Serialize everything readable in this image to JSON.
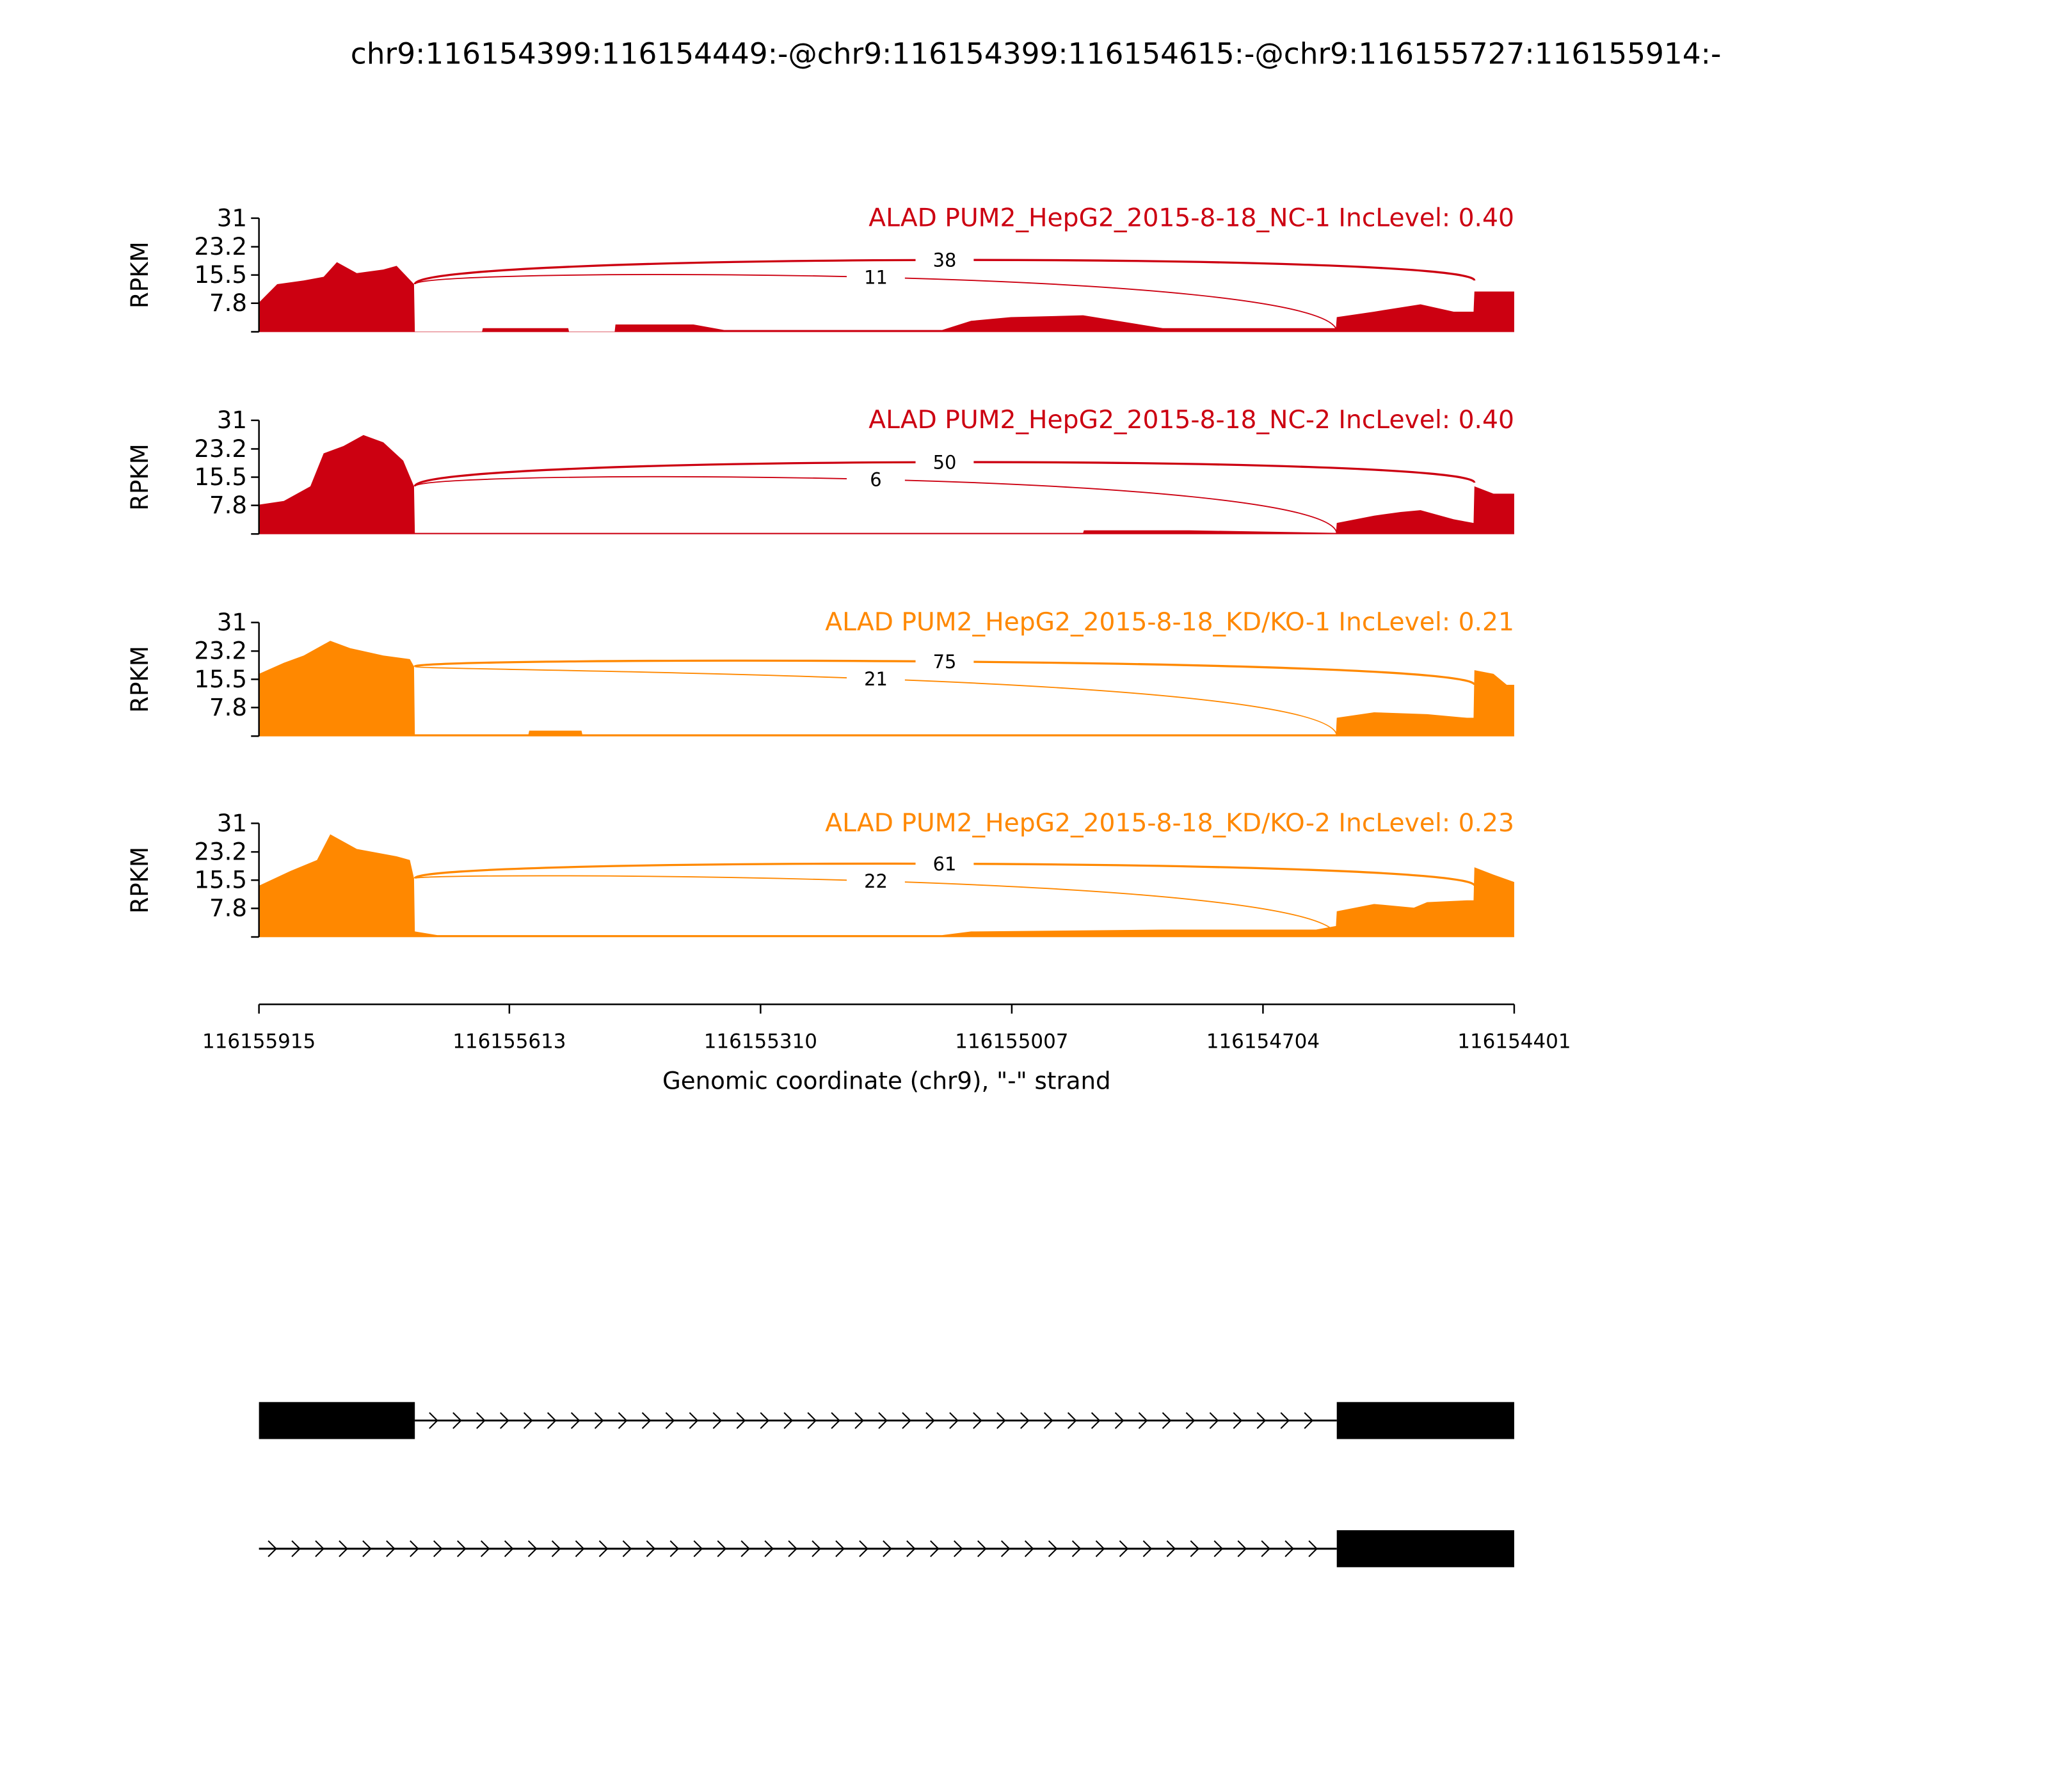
{
  "chart_data": {
    "type": "area",
    "title": "chr9:116154399:116154449:-@chr9:116154399:116154615:-@chr9:116155727:116155914:-",
    "xlabel": "Genomic coordinate (chr9), \"-\" strand",
    "ylabel": "RPKM",
    "xlim": [
      116155915,
      116154401
    ],
    "x_reversed": true,
    "xticks": [
      "116155915",
      "116155613",
      "116155310",
      "116155007",
      "116154704",
      "116154401"
    ],
    "ylim": [
      0,
      31
    ],
    "yticks": [
      "31",
      "23.2",
      "15.5",
      "7.8"
    ],
    "grid": false,
    "samples": [
      {
        "label": "ALAD PUM2_HepG2_2015-8-18_NC-1 IncLevel: 0.40",
        "color": "#cc0011",
        "coverage": [
          [
            116155915,
            8
          ],
          [
            116155893,
            13
          ],
          [
            116155861,
            14
          ],
          [
            116155837,
            15
          ],
          [
            116155821,
            19
          ],
          [
            116155797,
            16
          ],
          [
            116155765,
            17
          ],
          [
            116155749,
            18
          ],
          [
            116155728,
            13
          ],
          [
            116155727,
            0
          ],
          [
            116155646,
            0
          ],
          [
            116155645,
            1
          ],
          [
            116155542,
            1
          ],
          [
            116155541,
            0
          ],
          [
            116155486,
            0
          ],
          [
            116155485,
            2
          ],
          [
            116155391,
            2
          ],
          [
            116155354,
            0.5
          ],
          [
            116155091,
            0.5
          ],
          [
            116155056,
            3
          ],
          [
            116155008,
            4
          ],
          [
            116154921,
            4.5
          ],
          [
            116154825,
            1
          ],
          [
            116154616,
            1
          ],
          [
            116154615,
            4
          ],
          [
            116154570,
            5.5
          ],
          [
            116154514,
            7.5
          ],
          [
            116154474,
            5.5
          ],
          [
            116154450,
            5.5
          ],
          [
            116154449,
            11
          ],
          [
            116154401,
            11
          ]
        ],
        "junctions": [
          {
            "from": 116155727,
            "to": 116154449,
            "count": "38"
          },
          {
            "from": 116155727,
            "to": 116154615,
            "count": "11"
          }
        ]
      },
      {
        "label": "ALAD PUM2_HepG2_2015-8-18_NC-2 IncLevel: 0.40",
        "color": "#cc0011",
        "coverage": [
          [
            116155915,
            8
          ],
          [
            116155885,
            9
          ],
          [
            116155853,
            13
          ],
          [
            116155837,
            22
          ],
          [
            116155813,
            24
          ],
          [
            116155789,
            27
          ],
          [
            116155765,
            25
          ],
          [
            116155741,
            20
          ],
          [
            116155728,
            13
          ],
          [
            116155727,
            0.3
          ],
          [
            116154921,
            0.3
          ],
          [
            116154920,
            1
          ],
          [
            116154793,
            1
          ],
          [
            116154616,
            0.3
          ],
          [
            116154615,
            3
          ],
          [
            116154570,
            5
          ],
          [
            116154538,
            6
          ],
          [
            116154514,
            6.5
          ],
          [
            116154474,
            4
          ],
          [
            116154450,
            3
          ],
          [
            116154449,
            13
          ],
          [
            116154426,
            11
          ],
          [
            116154401,
            11
          ]
        ],
        "junctions": [
          {
            "from": 116155727,
            "to": 116154449,
            "count": "50"
          },
          {
            "from": 116155727,
            "to": 116154615,
            "count": "6"
          }
        ]
      },
      {
        "label": "ALAD PUM2_HepG2_2015-8-18_KD/KO-1 IncLevel: 0.21",
        "color": "#ff8800",
        "coverage": [
          [
            116155915,
            17
          ],
          [
            116155885,
            20
          ],
          [
            116155861,
            22
          ],
          [
            116155829,
            26
          ],
          [
            116155805,
            24
          ],
          [
            116155765,
            22
          ],
          [
            116155733,
            21
          ],
          [
            116155728,
            19
          ],
          [
            116155727,
            0.5
          ],
          [
            116155590,
            0.5
          ],
          [
            116155589,
            1.5
          ],
          [
            116155526,
            1.5
          ],
          [
            116155525,
            0.5
          ],
          [
            116154616,
            0.5
          ],
          [
            116154615,
            5
          ],
          [
            116154570,
            6.5
          ],
          [
            116154506,
            6
          ],
          [
            116154458,
            5
          ],
          [
            116154450,
            5
          ],
          [
            116154449,
            18
          ],
          [
            116154426,
            17
          ],
          [
            116154410,
            14
          ],
          [
            116154401,
            14
          ]
        ],
        "junctions": [
          {
            "from": 116155727,
            "to": 116154449,
            "count": "75"
          },
          {
            "from": 116155727,
            "to": 116154615,
            "count": "21"
          }
        ]
      },
      {
        "label": "ALAD PUM2_HepG2_2015-8-18_KD/KO-2 IncLevel: 0.23",
        "color": "#ff8800",
        "coverage": [
          [
            116155915,
            14
          ],
          [
            116155877,
            18
          ],
          [
            116155845,
            21
          ],
          [
            116155829,
            28
          ],
          [
            116155797,
            24
          ],
          [
            116155749,
            22
          ],
          [
            116155733,
            21
          ],
          [
            116155728,
            16
          ],
          [
            116155727,
            1.5
          ],
          [
            116155700,
            0.5
          ],
          [
            116155091,
            0.5
          ],
          [
            116155056,
            1.5
          ],
          [
            116154825,
            2
          ],
          [
            116154640,
            2
          ],
          [
            116154616,
            3
          ],
          [
            116154615,
            7
          ],
          [
            116154570,
            9
          ],
          [
            116154522,
            8
          ],
          [
            116154506,
            9.5
          ],
          [
            116154458,
            10
          ],
          [
            116154450,
            10
          ],
          [
            116154449,
            19
          ],
          [
            116154426,
            17
          ],
          [
            116154401,
            15
          ]
        ],
        "junctions": [
          {
            "from": 116155727,
            "to": 116154449,
            "count": "61"
          },
          {
            "from": 116155727,
            "to": 116154615,
            "count": "22"
          }
        ]
      }
    ],
    "transcripts": [
      {
        "exons": [
          [
            116155915,
            116155727
          ],
          [
            116154615,
            116154401
          ]
        ],
        "intron": [
          116155727,
          116154615
        ]
      },
      {
        "exons": [
          [
            116154615,
            116154401
          ]
        ],
        "intron": [
          116155915,
          116154615
        ]
      }
    ],
    "transcript_color": "#000000"
  }
}
